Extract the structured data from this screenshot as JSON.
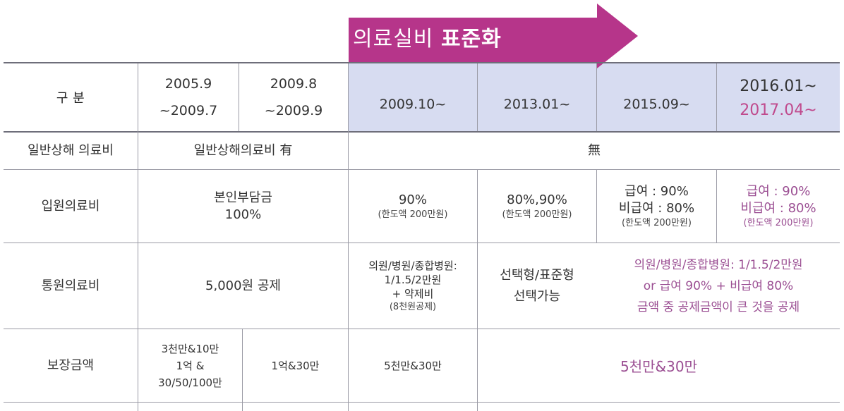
{
  "banner": {
    "label_normal": "의료실비 ",
    "label_bold": "표준화",
    "color": "#b6358a"
  },
  "colors": {
    "header_tint": "#d7dcf1",
    "pink_text": "#9b4f93",
    "pink_strong": "#c04a8d"
  },
  "header": {
    "row_label": "구 분",
    "col1": [
      "2005.9",
      "~2009.7"
    ],
    "col2": [
      "2009.8",
      "~2009.9"
    ],
    "col3": "2009.10~",
    "col4": "2013.01~",
    "col5": "2015.09~",
    "col6": [
      "2016.01~",
      "2017.04~"
    ]
  },
  "rows": {
    "injury": {
      "label": "일반상해 의료비",
      "left": "일반상해의료비 有",
      "right": "無"
    },
    "inpatient": {
      "label": "입원의료비",
      "left": [
        "본인부담금",
        "100%"
      ],
      "c3": [
        "90%",
        "(한도액 200만원)"
      ],
      "c4": [
        "80%,90%",
        "(한도액 200만원)"
      ],
      "c5": [
        "급여 : 90%",
        "비급여 : 80%",
        "(한도액 200만원)"
      ],
      "c6": [
        "급여 : 90%",
        "비급여 : 80%",
        "(한도액 200만원)"
      ]
    },
    "outpatient": {
      "label": "통원의료비",
      "left": "5,000원 공제",
      "c3": [
        "의원/병원/종합병원:",
        "1/1.5/2만원",
        "+ 약제비",
        "(8천원공제)"
      ],
      "c4": [
        "선택형/표준형",
        "선택가능"
      ],
      "c56": [
        "의원/병원/종합병원: 1/1.5/2만원",
        "or 급여 90% + 비급여 80%",
        "금액 중 공제금액이 큰 것을 공제"
      ]
    },
    "coverage": {
      "label": "보장금액",
      "c1": [
        "3천만&10만",
        "1억 &",
        "30/50/100만"
      ],
      "c2": "1억&30만",
      "c3": "5천만&30만",
      "c456": "5천만&30만"
    }
  }
}
